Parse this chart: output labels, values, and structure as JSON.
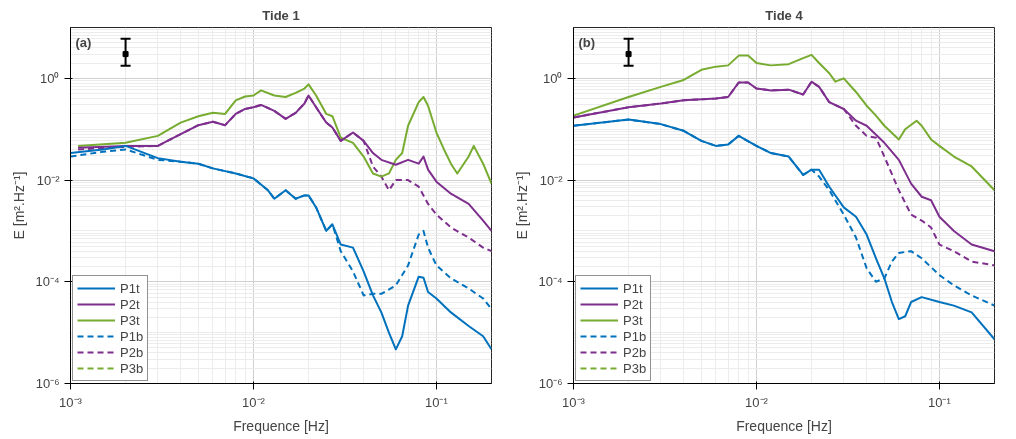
{
  "chart_data": [
    {
      "type": "line",
      "title": "Tide 1",
      "xlabel": "Frequence [Hz]",
      "ylabel": "E [m².Hz⁻¹]",
      "log": "xy",
      "grid": true,
      "legend": "bottom left",
      "xlim": [
        0.001,
        0.2
      ],
      "ylim": [
        1e-06,
        10
      ],
      "xticks": [
        {
          "value": 0.001,
          "label": "10⁻³"
        },
        {
          "value": 0.01,
          "label": "10⁻²"
        },
        {
          "value": 0.1,
          "label": "10⁻¹"
        }
      ],
      "yticks": [
        {
          "value": 1e-06,
          "label": "10⁻⁶"
        },
        {
          "value": 0.0001,
          "label": "10⁻⁴"
        },
        {
          "value": 0.01,
          "label": "10⁻²"
        },
        {
          "value": 1,
          "label": "10⁰"
        }
      ],
      "annotations": [
        "(a)"
      ],
      "series": [
        {
          "name": "P1t",
          "color": "#0072bd",
          "line_style": "solid",
          "x": [
            0.001,
            0.0015,
            0.002,
            0.003,
            0.004,
            0.005,
            0.006,
            0.007,
            0.008,
            0.01,
            0.012,
            0.013,
            0.015,
            0.017,
            0.019,
            0.02,
            0.022,
            0.025,
            0.027,
            0.03,
            0.035,
            0.04,
            0.045,
            0.05,
            0.055,
            0.06,
            0.065,
            0.07,
            0.08,
            0.085,
            0.09,
            0.1,
            0.12,
            0.15,
            0.18,
            0.2
          ],
          "values": [
            0.034,
            0.04,
            0.047,
            0.027,
            0.023,
            0.021,
            0.017,
            0.015,
            0.0135,
            0.0108,
            0.0063,
            0.0043,
            0.0063,
            0.0043,
            0.005,
            0.005,
            0.0029,
            0.001,
            0.00135,
            0.00054,
            0.00047,
            0.00016,
            5.4e-05,
            2.5e-05,
            1e-05,
            4.7e-06,
            8.5e-06,
            3.4e-05,
            0.000126,
            0.00012,
            6.3e-05,
            4.7e-05,
            2.5e-05,
            1.35e-05,
            8.5e-06,
            4.7e-06
          ]
        },
        {
          "name": "P2t",
          "color": "#7e2f8e",
          "line_style": "solid",
          "x": [
            0.0011,
            0.002,
            0.003,
            0.004,
            0.005,
            0.006,
            0.007,
            0.008,
            0.009,
            0.01,
            0.011,
            0.013,
            0.015,
            0.017,
            0.019,
            0.02,
            0.022,
            0.025,
            0.027,
            0.03,
            0.035,
            0.04,
            0.045,
            0.05,
            0.06,
            0.07,
            0.08,
            0.085,
            0.09,
            0.1,
            0.12,
            0.15,
            0.18,
            0.2
          ],
          "values": [
            0.043,
            0.047,
            0.047,
            0.08,
            0.12,
            0.14,
            0.12,
            0.2,
            0.25,
            0.27,
            0.3,
            0.23,
            0.16,
            0.21,
            0.32,
            0.46,
            0.27,
            0.135,
            0.108,
            0.059,
            0.086,
            0.059,
            0.034,
            0.025,
            0.02,
            0.025,
            0.021,
            0.029,
            0.016,
            0.0093,
            0.0054,
            0.0034,
            0.0016,
            0.001
          ]
        },
        {
          "name": "P3t",
          "color": "#77ac30",
          "line_style": "solid",
          "x": [
            0.0011,
            0.002,
            0.003,
            0.004,
            0.005,
            0.006,
            0.007,
            0.008,
            0.009,
            0.01,
            0.011,
            0.013,
            0.015,
            0.017,
            0.019,
            0.02,
            0.022,
            0.025,
            0.027,
            0.03,
            0.035,
            0.04,
            0.045,
            0.05,
            0.055,
            0.06,
            0.065,
            0.07,
            0.08,
            0.085,
            0.09,
            0.1,
            0.11,
            0.12,
            0.13,
            0.15,
            0.16,
            0.18,
            0.2
          ],
          "values": [
            0.047,
            0.054,
            0.074,
            0.135,
            0.18,
            0.21,
            0.2,
            0.37,
            0.44,
            0.46,
            0.58,
            0.46,
            0.43,
            0.52,
            0.63,
            0.76,
            0.46,
            0.2,
            0.18,
            0.068,
            0.054,
            0.029,
            0.0135,
            0.0117,
            0.0135,
            0.025,
            0.034,
            0.117,
            0.34,
            0.43,
            0.29,
            0.086,
            0.04,
            0.021,
            0.0135,
            0.029,
            0.047,
            0.021,
            0.0085
          ]
        },
        {
          "name": "P1b",
          "color": "#0072bd",
          "line_style": "dashed",
          "x": [
            0.001,
            0.0015,
            0.002,
            0.003,
            0.004,
            0.005,
            0.006,
            0.007,
            0.008,
            0.01,
            0.012,
            0.013,
            0.015,
            0.017,
            0.019,
            0.02,
            0.022,
            0.025,
            0.027,
            0.03,
            0.035,
            0.04,
            0.045,
            0.05,
            0.06,
            0.07,
            0.08,
            0.085,
            0.09,
            0.1,
            0.12,
            0.15,
            0.18,
            0.2
          ],
          "values": [
            0.029,
            0.036,
            0.04,
            0.025,
            0.023,
            0.021,
            0.017,
            0.015,
            0.0135,
            0.0108,
            0.0063,
            0.0043,
            0.0063,
            0.0043,
            0.005,
            0.005,
            0.0029,
            0.001,
            0.00135,
            0.0004,
            0.00016,
            5.4e-05,
            5.8e-05,
            5.8e-05,
            8.5e-05,
            0.00021,
            0.00085,
            0.001,
            0.00047,
            0.00021,
            0.000117,
            7.4e-05,
            4.7e-05,
            2.9e-05
          ]
        },
        {
          "name": "P2b",
          "color": "#7e2f8e",
          "line_style": "dashed",
          "x": [
            0.0011,
            0.002,
            0.003,
            0.004,
            0.005,
            0.006,
            0.007,
            0.008,
            0.009,
            0.01,
            0.011,
            0.013,
            0.015,
            0.017,
            0.019,
            0.02,
            0.022,
            0.025,
            0.027,
            0.03,
            0.035,
            0.04,
            0.045,
            0.05,
            0.055,
            0.06,
            0.07,
            0.08,
            0.09,
            0.1,
            0.12,
            0.15,
            0.18,
            0.2
          ],
          "values": [
            0.04,
            0.045,
            0.047,
            0.08,
            0.12,
            0.14,
            0.12,
            0.2,
            0.25,
            0.27,
            0.3,
            0.23,
            0.16,
            0.21,
            0.32,
            0.46,
            0.27,
            0.135,
            0.108,
            0.059,
            0.086,
            0.059,
            0.0185,
            0.0117,
            0.0063,
            0.01,
            0.01,
            0.0074,
            0.0034,
            0.0021,
            0.00117,
            0.00074,
            0.00047,
            0.0004
          ]
        },
        {
          "name": "P3b",
          "color": "#77ac30",
          "line_style": "dashed"
        },
        {
          "type": "scatter",
          "color": "#000000",
          "marker": "square",
          "x": [
            0.002
          ],
          "values": [
            3.0
          ],
          "errors": [
            [
              1.76,
              6.0
            ]
          ]
        }
      ]
    },
    {
      "type": "line",
      "title": "Tide 4",
      "xlabel": "Frequence [Hz]",
      "ylabel": "E [m².Hz⁻¹]",
      "log": "xy",
      "grid": true,
      "legend": "bottom left",
      "xlim": [
        0.001,
        0.2
      ],
      "ylim": [
        1e-06,
        10
      ],
      "xticks": [
        {
          "value": 0.001,
          "label": "10⁻³"
        },
        {
          "value": 0.01,
          "label": "10⁻²"
        },
        {
          "value": 0.1,
          "label": "10⁻¹"
        }
      ],
      "yticks": [
        {
          "value": 1e-06,
          "label": "10⁻⁶"
        },
        {
          "value": 0.0001,
          "label": "10⁻⁴"
        },
        {
          "value": 0.01,
          "label": "10⁻²"
        },
        {
          "value": 1,
          "label": "10⁰"
        }
      ],
      "annotations": [
        "(b)"
      ],
      "series": [
        {
          "name": "P1t",
          "color": "#0072bd",
          "line_style": "solid",
          "x": [
            0.001,
            0.002,
            0.003,
            0.004,
            0.005,
            0.006,
            0.007,
            0.008,
            0.01,
            0.012,
            0.015,
            0.018,
            0.02,
            0.022,
            0.025,
            0.03,
            0.035,
            0.04,
            0.045,
            0.05,
            0.055,
            0.06,
            0.065,
            0.07,
            0.08,
            0.1,
            0.12,
            0.15,
            0.2
          ],
          "values": [
            0.117,
            0.155,
            0.126,
            0.093,
            0.059,
            0.047,
            0.05,
            0.074,
            0.047,
            0.034,
            0.029,
            0.0126,
            0.016,
            0.016,
            0.0074,
            0.0029,
            0.0019,
            0.00085,
            0.00029,
            0.000117,
            4e-05,
            1.85e-05,
            2.1e-05,
            4e-05,
            5e-05,
            4e-05,
            3.4e-05,
            2.5e-05,
            7.4e-06
          ]
        },
        {
          "name": "P2t",
          "color": "#7e2f8e",
          "line_style": "solid",
          "x": [
            0.001,
            0.002,
            0.003,
            0.004,
            0.006,
            0.007,
            0.008,
            0.009,
            0.01,
            0.012,
            0.015,
            0.018,
            0.02,
            0.022,
            0.025,
            0.03,
            0.035,
            0.04,
            0.05,
            0.06,
            0.07,
            0.08,
            0.09,
            0.1,
            0.12,
            0.15,
            0.2
          ],
          "values": [
            0.17,
            0.27,
            0.32,
            0.37,
            0.4,
            0.43,
            0.83,
            0.83,
            0.63,
            0.58,
            0.6,
            0.48,
            0.86,
            0.68,
            0.34,
            0.25,
            0.147,
            0.117,
            0.054,
            0.025,
            0.0085,
            0.0047,
            0.004,
            0.0019,
            0.001,
            0.00054,
            0.0004
          ]
        },
        {
          "name": "P3t",
          "color": "#77ac30",
          "line_style": "solid",
          "x": [
            0.001,
            0.002,
            0.003,
            0.004,
            0.005,
            0.006,
            0.007,
            0.008,
            0.009,
            0.01,
            0.012,
            0.015,
            0.018,
            0.02,
            0.022,
            0.025,
            0.027,
            0.03,
            0.035,
            0.04,
            0.045,
            0.05,
            0.06,
            0.065,
            0.075,
            0.08,
            0.09,
            0.1,
            0.12,
            0.15,
            0.2
          ],
          "values": [
            0.185,
            0.43,
            0.68,
            0.93,
            1.47,
            1.7,
            1.8,
            2.8,
            2.8,
            2.0,
            1.8,
            1.9,
            2.5,
            2.9,
            2.0,
            1.26,
            0.86,
            1.0,
            0.54,
            0.29,
            0.185,
            0.117,
            0.063,
            0.1,
            0.147,
            0.117,
            0.063,
            0.047,
            0.029,
            0.0185,
            0.0063
          ]
        },
        {
          "name": "P1b",
          "color": "#0072bd",
          "line_style": "dashed",
          "x": [
            0.001,
            0.002,
            0.003,
            0.004,
            0.005,
            0.006,
            0.007,
            0.008,
            0.01,
            0.012,
            0.015,
            0.018,
            0.02,
            0.022,
            0.025,
            0.03,
            0.035,
            0.04,
            0.045,
            0.05,
            0.055,
            0.06,
            0.07,
            0.08,
            0.1,
            0.12,
            0.15,
            0.2
          ],
          "values": [
            0.117,
            0.155,
            0.126,
            0.093,
            0.059,
            0.047,
            0.05,
            0.074,
            0.047,
            0.034,
            0.029,
            0.0126,
            0.016,
            0.0117,
            0.0063,
            0.0021,
            0.00074,
            0.000185,
            0.0001,
            0.000117,
            0.00025,
            0.00037,
            0.0004,
            0.00029,
            0.000135,
            8.5e-05,
            5.4e-05,
            3.4e-05
          ]
        },
        {
          "name": "P2b",
          "color": "#7e2f8e",
          "line_style": "dashed",
          "x": [
            0.001,
            0.002,
            0.003,
            0.004,
            0.006,
            0.007,
            0.008,
            0.009,
            0.01,
            0.012,
            0.015,
            0.018,
            0.02,
            0.022,
            0.025,
            0.03,
            0.035,
            0.04,
            0.045,
            0.05,
            0.06,
            0.07,
            0.08,
            0.09,
            0.1,
            0.12,
            0.15,
            0.2
          ],
          "values": [
            0.17,
            0.27,
            0.32,
            0.37,
            0.4,
            0.43,
            0.83,
            0.83,
            0.63,
            0.58,
            0.6,
            0.48,
            0.86,
            0.68,
            0.34,
            0.25,
            0.117,
            0.074,
            0.068,
            0.029,
            0.0063,
            0.0021,
            0.0016,
            0.00117,
            0.00054,
            0.0004,
            0.00025,
            0.00021
          ]
        },
        {
          "name": "P3b",
          "color": "#77ac30",
          "line_style": "dashed"
        },
        {
          "type": "scatter",
          "color": "#000000",
          "marker": "square",
          "x": [
            0.002
          ],
          "values": [
            3.0
          ],
          "errors": [
            [
              1.76,
              6.0
            ]
          ]
        }
      ]
    }
  ]
}
